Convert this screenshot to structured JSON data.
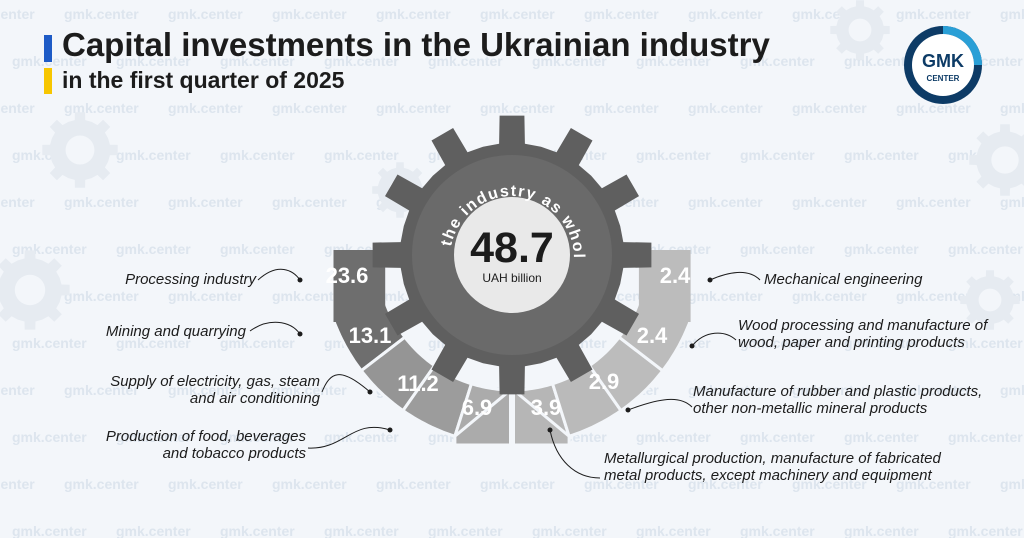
{
  "header": {
    "title": "Capital investments in the Ukrainian industry",
    "subtitle": "in the first quarter of 2025"
  },
  "logo": {
    "line1": "GMK",
    "line2": "CENTER"
  },
  "watermark": "gmk.center",
  "center": {
    "arc_text": "In the industry as whole",
    "value": "48.7",
    "unit": "UAH billion"
  },
  "labels": [
    "Processing industry",
    "Mining and quarrying",
    "Supply of electricity, gas, steam and air conditioning",
    "Production of food, beverages and tobacco products",
    "Metallurgical production, manufacture of fabricated metal products, except machinery and equipment",
    "Manufacture of rubber and plastic products, other non-metallic mineral products",
    "Wood processing and manufacture of wood, paper and printing products",
    "Mechanical engineering"
  ],
  "chart_data": {
    "type": "bar",
    "title": "Capital investments in the Ukrainian industry",
    "subtitle": "in the first quarter of 2025",
    "unit": "UAH billion",
    "total": 48.7,
    "total_label": "In the industry as whole",
    "categories": [
      "Processing industry",
      "Mining and quarrying",
      "Supply of electricity, gas, steam and air conditioning",
      "Production of food, beverages and tobacco products",
      "Metallurgical production, manufacture of fabricated metal products, except machinery and equipment",
      "Manufacture of rubber and plastic products, other non-metallic mineral products",
      "Wood processing and manufacture of wood, paper and printing products",
      "Mechanical engineering"
    ],
    "values": [
      23.6,
      13.1,
      11.2,
      6.9,
      3.9,
      2.9,
      2.4,
      2.4
    ],
    "value_labels": [
      "23.6",
      "13.1",
      "11.2",
      "6.9",
      "3.9",
      "2.9",
      "2.4",
      "2.4"
    ]
  },
  "colors": {
    "gear": "#5f5f5f",
    "gear_hub": "#e9e9e9",
    "segment_darkest": "#6e6e6e",
    "segment_lightest": "#bcbcbc",
    "accent_blue": "#1e5bc6",
    "accent_yellow": "#f7c600",
    "logo_teal": "#2a9fd6"
  }
}
